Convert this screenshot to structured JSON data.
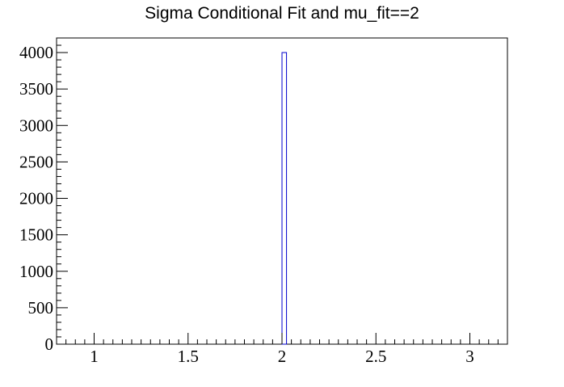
{
  "chart_data": {
    "type": "bar",
    "title": "Sigma Conditional Fit and mu_fit==2",
    "xlabel": "",
    "ylabel": "",
    "xlim": [
      0.8,
      3.2
    ],
    "ylim": [
      0,
      4200
    ],
    "x_ticks": [
      1,
      1.5,
      2,
      2.5,
      3
    ],
    "x_tick_labels": [
      "1",
      "1.5",
      "2",
      "2.5",
      "3"
    ],
    "y_ticks": [
      0,
      500,
      1000,
      1500,
      2000,
      2500,
      3000,
      3500,
      4000
    ],
    "y_tick_labels": [
      "0",
      "500",
      "1000",
      "1500",
      "2000",
      "2500",
      "3000",
      "3500",
      "4000"
    ],
    "bins": [
      {
        "x_low": 2.0,
        "x_high": 2.024,
        "value": 4000
      }
    ],
    "bar_color": "#0000cc",
    "grid": false,
    "legend": "none"
  }
}
